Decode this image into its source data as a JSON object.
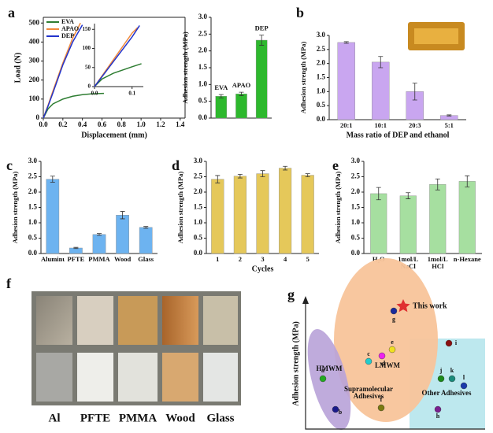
{
  "chart_data": [
    {
      "type": "line",
      "panel": "a",
      "xlabel": "Displacement (mm)",
      "ylabel": "Load (N)",
      "xlim": [
        0,
        1.45
      ],
      "xticks": [
        {
          "value": 0,
          "label": "0.0"
        },
        0.2,
        0.4,
        0.6,
        0.8,
        {
          "value": 1,
          "label": "1.0"
        },
        1.2,
        1.4
      ],
      "ylim": [
        0,
        530
      ],
      "yticks": [
        0,
        100,
        200,
        300,
        400,
        500
      ],
      "legend": "upper left",
      "series": [
        {
          "name": "EVA",
          "color": "#2e7d32",
          "x": [
            0,
            0.05,
            0.1,
            0.2,
            0.3,
            0.4,
            0.5,
            0.62
          ],
          "values": [
            0,
            50,
            75,
            100,
            115,
            123,
            128,
            130
          ]
        },
        {
          "name": "APAO",
          "color": "#f08a3c",
          "x": [
            0,
            0.05,
            0.1,
            0.2,
            0.3,
            0.38
          ],
          "values": [
            0,
            70,
            145,
            290,
            420,
            500
          ]
        },
        {
          "name": "DEP",
          "color": "#2233cc",
          "x": [
            0,
            0.05,
            0.1,
            0.2,
            0.3,
            0.4
          ],
          "values": [
            0,
            65,
            135,
            280,
            400,
            490
          ]
        }
      ]
    },
    {
      "type": "line",
      "xlim": [
        0,
        0.13
      ],
      "xticks": [
        {
          "value": 0,
          "label": "0.0"
        },
        0.1
      ],
      "ylim": [
        0,
        165
      ],
      "yticks": [
        0,
        50,
        100,
        150
      ],
      "series": [
        {
          "color": "#2e7d32",
          "x": [
            0,
            0.02,
            0.05,
            0.1,
            0.125
          ],
          "values": [
            0,
            20,
            35,
            52,
            60
          ]
        },
        {
          "color": "#f08a3c",
          "x": [
            0,
            0.05,
            0.1,
            0.115
          ],
          "values": [
            0,
            70,
            140,
            155
          ]
        },
        {
          "color": "#2233cc",
          "x": [
            0,
            0.05,
            0.1,
            0.12
          ],
          "values": [
            0,
            65,
            130,
            160
          ]
        }
      ]
    },
    {
      "type": "bar",
      "ylabel": "Adhesion strength (MPa)",
      "label_position": "above",
      "color": "#2db82d",
      "categories": [
        "EVA",
        "APAO",
        "DEP"
      ],
      "values": [
        0.65,
        0.72,
        2.32
      ],
      "errors": [
        0.05,
        0.05,
        0.15
      ],
      "ylim": [
        0,
        3
      ],
      "yticks": [
        {
          "value": 0,
          "label": "0.0"
        },
        0.5,
        {
          "value": 1,
          "label": "1.0"
        },
        1.5,
        {
          "value": 2,
          "label": "2.0"
        },
        2.5,
        {
          "value": 3,
          "label": "3.0"
        }
      ]
    },
    {
      "type": "bar",
      "panel": "b",
      "ylabel": "Adhesion strength (MPa)",
      "xlabel": "Mass ratio of DEP and ethanol",
      "color": "#c9a6f0",
      "categories": [
        "20:1",
        "10:1",
        "20:3",
        "5:1"
      ],
      "values": [
        2.75,
        2.05,
        1.0,
        0.15
      ],
      "errors": [
        0.03,
        0.2,
        0.3,
        0.02
      ],
      "ylim": [
        0,
        3
      ],
      "yticks": [
        {
          "value": 0,
          "label": "0.0"
        },
        0.5,
        {
          "value": 1,
          "label": "1.0"
        },
        1.5,
        {
          "value": 2,
          "label": "2.0"
        },
        2.5,
        {
          "value": 3,
          "label": "3.0"
        }
      ]
    },
    {
      "type": "bar",
      "panel": "c",
      "ylabel": "Adhesion strength (MPa)",
      "color": "#6db3f0",
      "categories": [
        "Aluminum",
        "PFTE",
        "PMMA",
        "Wood",
        "Glass"
      ],
      "values": [
        2.42,
        0.18,
        0.62,
        1.25,
        0.85
      ],
      "errors": [
        0.1,
        0.02,
        0.03,
        0.12,
        0.03
      ],
      "ylim": [
        0,
        3
      ],
      "yticks": [
        {
          "value": 0,
          "label": "0.0"
        },
        0.5,
        {
          "value": 1,
          "label": "1.0"
        },
        1.5,
        {
          "value": 2,
          "label": "2.0"
        },
        2.5,
        {
          "value": 3,
          "label": "3.0"
        }
      ]
    },
    {
      "type": "bar",
      "panel": "d",
      "ylabel": "Adhesion strength (MPa)",
      "xlabel": "Cycles",
      "color": "#e5c85a",
      "categories": [
        "1",
        "2",
        "3",
        "4",
        "5"
      ],
      "values": [
        2.42,
        2.52,
        2.6,
        2.78,
        2.55
      ],
      "errors": [
        0.12,
        0.06,
        0.1,
        0.06,
        0.05
      ],
      "ylim": [
        0,
        3
      ],
      "yticks": [
        {
          "value": 0,
          "label": "0.0"
        },
        0.5,
        {
          "value": 1,
          "label": "1.0"
        },
        1.5,
        {
          "value": 2,
          "label": "2.0"
        },
        2.5,
        {
          "value": 3,
          "label": "3.0"
        }
      ]
    },
    {
      "type": "bar",
      "panel": "e",
      "ylabel": "Adhesion strength (MPa)",
      "color": "#a6dfa0",
      "categories": [
        "H₂O",
        "1mol/L NaCl",
        "1mol/L HCl",
        "n-Hexane"
      ],
      "values": [
        1.95,
        1.88,
        2.25,
        2.35
      ],
      "errors": [
        0.2,
        0.1,
        0.18,
        0.18
      ],
      "ylim": [
        0,
        3
      ],
      "yticks": [
        {
          "value": 0,
          "label": "0.0"
        },
        0.5,
        {
          "value": 1,
          "label": "1.0"
        },
        1.5,
        {
          "value": 2,
          "label": "2.0"
        },
        2.5,
        {
          "value": 3,
          "label": "3.0"
        }
      ]
    }
  ],
  "photos": {
    "panel": "f",
    "labels": [
      "Al",
      "PFTE",
      "PMMA",
      "Wood",
      "Glass"
    ]
  },
  "map": {
    "panel": "g",
    "ylabel": "Adhesion strength (MPa)",
    "this_work": "This work",
    "regions": [
      "HMWM",
      "LMWM",
      "Supramolecular Adhesives",
      "Other Adhesives"
    ],
    "points": [
      {
        "label": "a",
        "color": "#22aa22"
      },
      {
        "label": "b",
        "color": "#1a1a8a"
      },
      {
        "label": "c",
        "color": "#22cccc"
      },
      {
        "label": "d",
        "color": "#ee22ee"
      },
      {
        "label": "e",
        "color": "#f0e020"
      },
      {
        "label": "f",
        "color": "#7a7a10"
      },
      {
        "label": "g",
        "color": "#1a2a9a"
      },
      {
        "label": "h",
        "color": "#7a2090"
      },
      {
        "label": "i",
        "color": "#8a1010"
      },
      {
        "label": "j",
        "color": "#1a8a1a"
      },
      {
        "label": "k",
        "color": "#1a8a7a"
      },
      {
        "label": "l",
        "color": "#1a3aaa"
      }
    ]
  }
}
